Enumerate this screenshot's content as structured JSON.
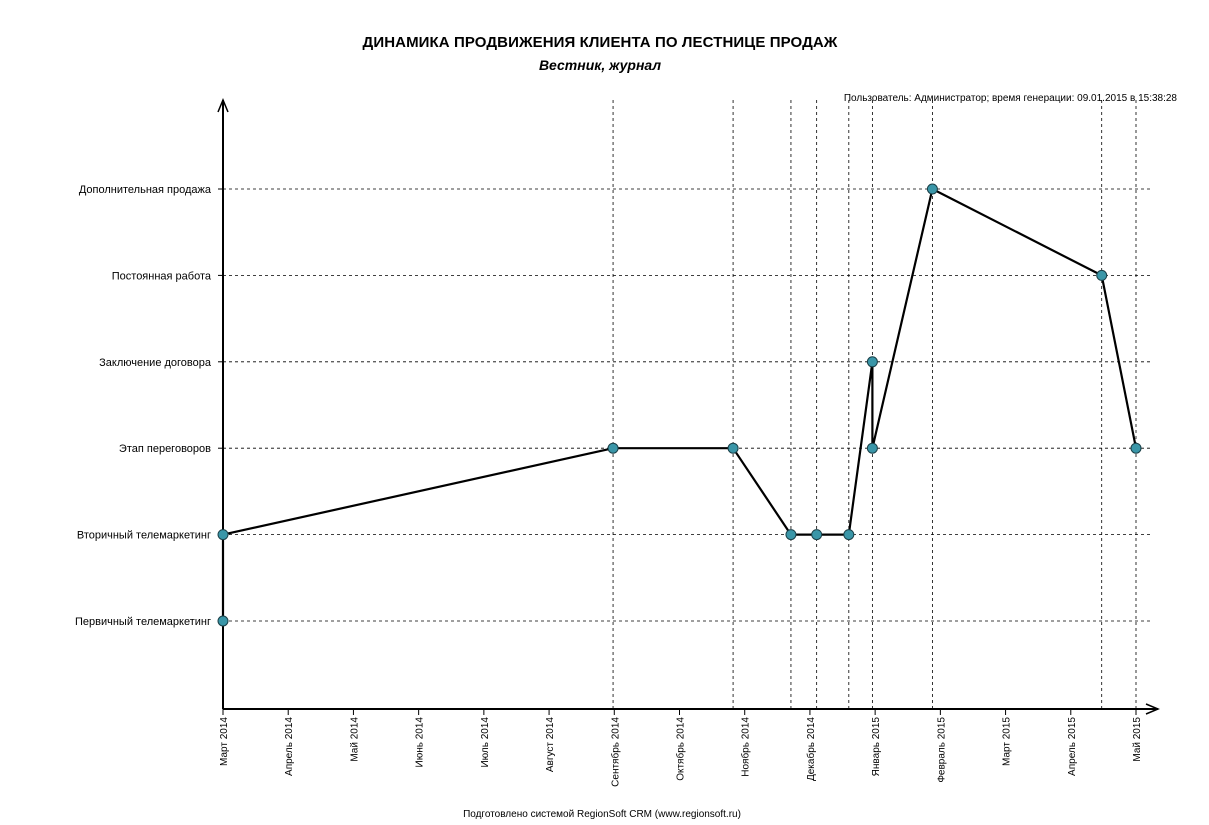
{
  "header": {
    "title": "ДИНАМИКА ПРОДВИЖЕНИЯ КЛИЕНТА ПО ЛЕСТНИЦЕ ПРОДАЖ",
    "subtitle": "Вестник, журнал",
    "meta": "Пользователь: Администратор; время генерации: 09.01.2015 в 15:38:28"
  },
  "footer": {
    "text": "Подготовлено системой RegionSoft CRM (www.regionsoft.ru)"
  },
  "chart_data": {
    "type": "line",
    "title": "ДИНАМИКА ПРОДВИЖЕНИЯ КЛИЕНТА ПО ЛЕСТНИЦЕ ПРОДАЖ",
    "subtitle": "Вестник, журнал",
    "xlabel": "",
    "ylabel": "",
    "x_tick_labels": [
      "Март 2014",
      "Апрель 2014",
      "Май 2014",
      "Июнь 2014",
      "Июль 2014",
      "Август 2014",
      "Сентябрь 2014",
      "Октябрь 2014",
      "Ноябрь 2014",
      "Декабрь 2014",
      "Январь 2015",
      "Февраль 2015",
      "Март 2015",
      "Апрель 2015",
      "Май 2015"
    ],
    "x_range": [
      "2014-03-01",
      "2015-05-01"
    ],
    "y_categories": [
      "Первичный телемаркетинг",
      "Вторичный телемаркетинг",
      "Этап переговоров",
      "Заключение договора",
      "Постоянная работа",
      "Дополнительная продажа"
    ],
    "grid": true,
    "series": [
      {
        "color": "#000000",
        "marker_color": "#3a96a8",
        "points": [
          {
            "x": "2014-03-01",
            "y": "Первичный телемаркетинг"
          },
          {
            "x": "2014-03-01",
            "y": "Вторичный телемаркетинг"
          },
          {
            "x": "2014-08-30",
            "y": "Этап переговоров"
          },
          {
            "x": "2014-10-25",
            "y": "Этап переговоров"
          },
          {
            "x": "2014-11-21",
            "y": "Вторичный телемаркетинг"
          },
          {
            "x": "2014-12-03",
            "y": "Вторичный телемаркетинг"
          },
          {
            "x": "2014-12-18",
            "y": "Вторичный телемаркетинг"
          },
          {
            "x": "2014-12-29",
            "y": "Заключение договора"
          },
          {
            "x": "2014-12-29",
            "y": "Этап переговоров"
          },
          {
            "x": "2015-01-26",
            "y": "Дополнительная продажа"
          },
          {
            "x": "2015-04-15",
            "y": "Постоянная работа"
          },
          {
            "x": "2015-05-01",
            "y": "Этап переговоров"
          }
        ]
      }
    ]
  }
}
